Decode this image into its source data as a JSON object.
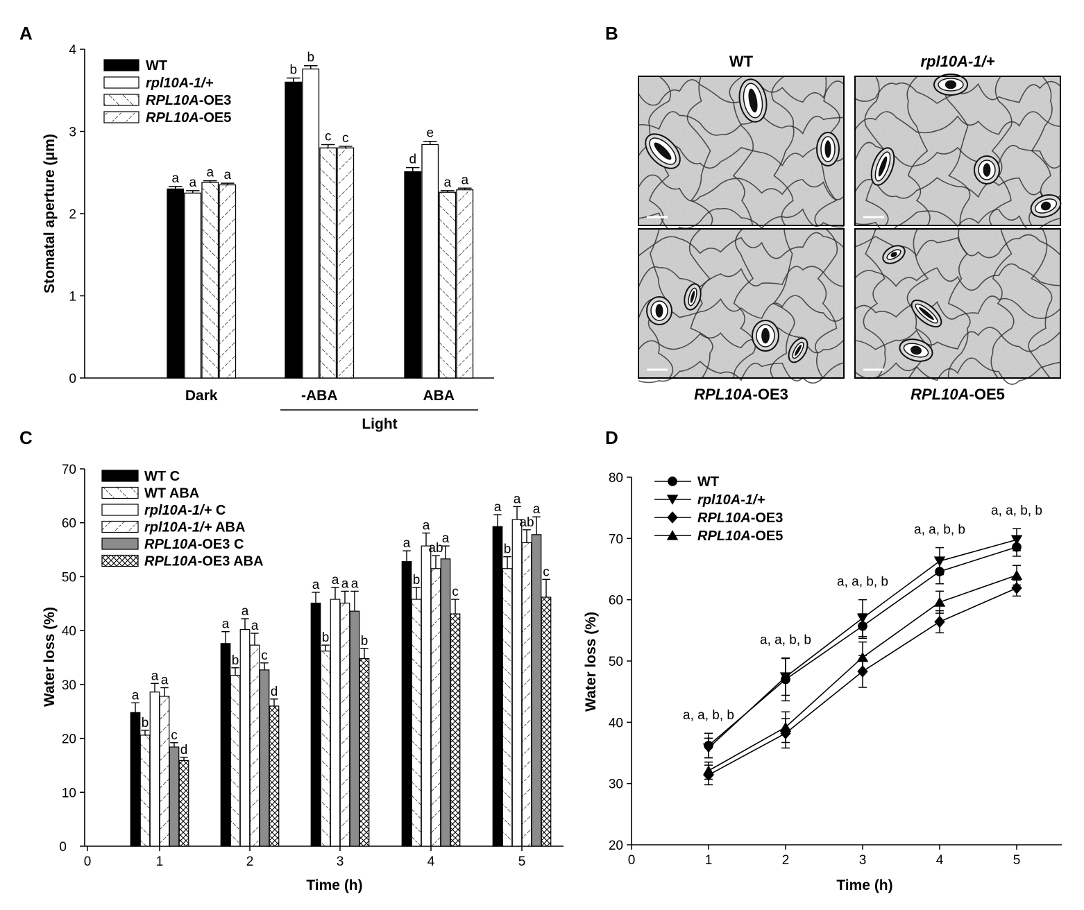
{
  "colors": {
    "black": "#000000",
    "white": "#ffffff",
    "gray": "#8c8c8c"
  },
  "chart_data": [
    {
      "panel": "A",
      "type": "bar",
      "ylabel": "Stomatal aperture (μm)",
      "xlabel": "",
      "ylim": [
        0,
        4
      ],
      "yticks": [
        "0",
        "1",
        "2",
        "3",
        "4"
      ],
      "categories": [
        "Dark",
        "-ABA",
        "ABA"
      ],
      "group_label": "Light",
      "legend_position": "top-left",
      "series": [
        {
          "name": "WT",
          "name_italic": "",
          "name_rest": "WT",
          "fill": "solid-black",
          "values": [
            2.3,
            3.6,
            2.51
          ],
          "errors": [
            0.03,
            0.05,
            0.05
          ],
          "letters": [
            "a",
            "b",
            "d"
          ]
        },
        {
          "name": "rpl10A-1/+",
          "name_italic": "rpl10A-1/+",
          "name_rest": "",
          "fill": "white",
          "values": [
            2.25,
            3.76,
            2.84
          ],
          "errors": [
            0.03,
            0.04,
            0.04
          ],
          "letters": [
            "a",
            "b",
            "e"
          ]
        },
        {
          "name": "RPL10A-OE3",
          "name_italic": "RPL10A",
          "name_rest": "-OE3",
          "fill": "forward-hatch",
          "values": [
            2.38,
            2.8,
            2.26
          ],
          "errors": [
            0.02,
            0.04,
            0.02
          ],
          "letters": [
            "a",
            "c",
            "a"
          ]
        },
        {
          "name": "RPL10A-OE5",
          "name_italic": "RPL10A",
          "name_rest": "-OE5",
          "fill": "back-hatch",
          "values": [
            2.35,
            2.8,
            2.29
          ],
          "errors": [
            0.02,
            0.02,
            0.02
          ],
          "letters": [
            "a",
            "c",
            "a"
          ]
        }
      ]
    },
    {
      "panel": "C",
      "type": "bar",
      "ylabel": "Water loss (%)",
      "xlabel": "Time (h)",
      "ylim": [
        0,
        70
      ],
      "yticks": [
        "0",
        "10",
        "20",
        "30",
        "40",
        "50",
        "60",
        "70"
      ],
      "xticks": [
        "0",
        "1",
        "2",
        "3",
        "4",
        "5"
      ],
      "categories": [
        "1",
        "2",
        "3",
        "4",
        "5"
      ],
      "legend_position": "top-left",
      "series": [
        {
          "name": "WT C",
          "name_italic": "",
          "name_rest": "WT C",
          "fill": "solid-black",
          "values": [
            24.8,
            37.6,
            45.1,
            52.8,
            59.3
          ],
          "errors": [
            1.8,
            2.2,
            2.0,
            2.0,
            2.2
          ],
          "letters": [
            "a",
            "a",
            "a",
            "a",
            "a"
          ]
        },
        {
          "name": "WT ABA",
          "name_italic": "",
          "name_rest": "WT ABA",
          "fill": "forward-hatch",
          "values": [
            20.6,
            31.7,
            36.2,
            45.8,
            51.5
          ],
          "errors": [
            0.9,
            1.4,
            1.1,
            2.2,
            2.2
          ],
          "letters": [
            "b",
            "b",
            "b",
            "b",
            "b"
          ]
        },
        {
          "name": "rpl10A-1/+ C",
          "name_italic": "rpl10A-1/+",
          "name_rest": " C",
          "fill": "white",
          "values": [
            28.6,
            40.2,
            45.8,
            55.7,
            60.6
          ],
          "errors": [
            1.6,
            2.0,
            2.2,
            2.4,
            2.4
          ],
          "letters": [
            "a",
            "a",
            "a",
            "a",
            "a"
          ]
        },
        {
          "name": "rpl10A-1/+ ABA",
          "name_italic": "rpl10A-1/+",
          "name_rest": " ABA",
          "fill": "back-hatch",
          "values": [
            27.8,
            37.3,
            45.1,
            51.5,
            56.3
          ],
          "errors": [
            1.6,
            2.2,
            2.2,
            2.4,
            2.4
          ],
          "letters": [
            "a",
            "a",
            "a",
            "ab",
            "ab"
          ]
        },
        {
          "name": "RPL10A-OE3 C",
          "name_italic": "RPL10A",
          "name_rest": "-OE3 C",
          "fill": "gray",
          "values": [
            18.4,
            32.7,
            43.6,
            53.3,
            57.8
          ],
          "errors": [
            0.8,
            1.3,
            3.7,
            2.4,
            3.3
          ],
          "letters": [
            "c",
            "c",
            "a",
            "a",
            "a"
          ]
        },
        {
          "name": "RPL10A-OE3 ABA",
          "name_italic": "RPL10A",
          "name_rest": "-OE3 ABA",
          "fill": "crosshatch",
          "values": [
            15.9,
            26.0,
            34.8,
            43.1,
            46.2
          ],
          "errors": [
            0.6,
            1.3,
            1.9,
            2.7,
            3.3
          ],
          "letters": [
            "d",
            "d",
            "b",
            "c",
            "c"
          ]
        }
      ]
    },
    {
      "panel": "D",
      "type": "line",
      "ylabel": "Water loss (%)",
      "xlabel": "Time (h)",
      "xlim": [
        0,
        5.5
      ],
      "ylim": [
        20,
        80
      ],
      "xticks": [
        "0",
        "1",
        "2",
        "3",
        "4",
        "5"
      ],
      "yticks": [
        "20",
        "30",
        "40",
        "50",
        "60",
        "70",
        "80"
      ],
      "x": [
        1,
        2,
        3,
        4,
        5
      ],
      "legend_position": "top-left",
      "point_annotations": [
        "a, a, b, b",
        "a, a, b, b",
        "a, a, b, b",
        "a, a, b, b",
        "a, a, b, b"
      ],
      "series": [
        {
          "name": "WT",
          "name_italic": "",
          "name_rest": "WT",
          "marker": "circle",
          "values": [
            36.2,
            47.0,
            55.7,
            64.6,
            68.6
          ],
          "errors": [
            2.0,
            3.5,
            2.0,
            2.0,
            1.5
          ]
        },
        {
          "name": "rpl10A-1/+",
          "name_italic": "rpl10A-1/+",
          "name_rest": "",
          "marker": "triangle-down",
          "values": [
            35.8,
            47.4,
            57.0,
            66.3,
            69.8
          ],
          "errors": [
            1.6,
            3.0,
            3.0,
            2.2,
            1.8
          ]
        },
        {
          "name": "RPL10A-OE3",
          "name_italic": "RPL10A",
          "name_rest": "-OE3",
          "marker": "diamond",
          "values": [
            31.4,
            38.2,
            48.3,
            56.4,
            61.9
          ],
          "errors": [
            1.6,
            2.4,
            2.6,
            1.8,
            1.3
          ]
        },
        {
          "name": "RPL10A-OE5",
          "name_italic": "RPL10A",
          "name_rest": "-OE5",
          "marker": "triangle-up",
          "values": [
            32.1,
            39.2,
            50.6,
            59.6,
            64.0
          ],
          "errors": [
            1.4,
            2.5,
            2.5,
            1.8,
            1.6
          ]
        }
      ]
    }
  ],
  "panel_b": {
    "label": "B",
    "images": [
      {
        "title_italic": "",
        "title_rest": "WT",
        "title_position": "top"
      },
      {
        "title_italic": "rpl10A-1/+",
        "title_rest": "",
        "title_position": "top"
      },
      {
        "title_italic": "RPL10A",
        "title_rest": "-OE3",
        "title_position": "bottom"
      },
      {
        "title_italic": "RPL10A",
        "title_rest": "-OE5",
        "title_position": "bottom"
      }
    ]
  },
  "panel_labels": {
    "a": "A",
    "b": "B",
    "c": "C",
    "d": "D"
  }
}
